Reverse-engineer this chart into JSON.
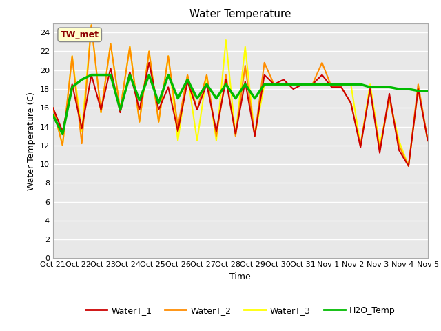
{
  "title": "Water Temperature",
  "xlabel": "Time",
  "ylabel": "Water Temperature (C)",
  "ylim": [
    0,
    25
  ],
  "yticks": [
    0,
    2,
    4,
    6,
    8,
    10,
    12,
    14,
    16,
    18,
    20,
    22,
    24
  ],
  "x_labels": [
    "Oct 21",
    "Oct 22",
    "Oct 23",
    "Oct 24",
    "Oct 25",
    "Oct 26",
    "Oct 27",
    "Oct 28",
    "Oct 29",
    "Oct 30",
    "Oct 31",
    "Nov 1",
    "Nov 2",
    "Nov 3",
    "Nov 4",
    "Nov 5"
  ],
  "annotation_text": "TW_met",
  "annotation_color": "#8B0000",
  "annotation_bg": "#FFFFCC",
  "fig_bg_color": "#FFFFFF",
  "plot_bg_color": "#E8E8E8",
  "grid_color": "#FFFFFF",
  "line_colors": {
    "WaterT_1": "#CC0000",
    "WaterT_2": "#FF8C00",
    "WaterT_3": "#FFFF00",
    "H2O_Temp": "#00BB00"
  },
  "line_widths": {
    "WaterT_1": 1.5,
    "WaterT_2": 1.5,
    "WaterT_3": 1.5,
    "H2O_Temp": 2.5
  },
  "WaterT_1": [
    16.0,
    13.5,
    18.5,
    13.8,
    19.5,
    15.8,
    20.2,
    15.5,
    19.8,
    15.8,
    20.8,
    15.8,
    18.2,
    13.5,
    18.8,
    15.8,
    18.5,
    13.5,
    19.0,
    13.2,
    18.8,
    13.0,
    19.5,
    18.5,
    19.0,
    18.0,
    18.5,
    18.5,
    19.5,
    18.2,
    18.2,
    16.5,
    11.8,
    18.0,
    11.2,
    17.5,
    11.5,
    9.8,
    18.0,
    12.5
  ],
  "WaterT_2": [
    16.0,
    12.0,
    21.5,
    12.2,
    24.8,
    15.5,
    22.8,
    15.8,
    22.5,
    14.5,
    22.0,
    14.5,
    21.5,
    14.0,
    19.5,
    15.8,
    19.5,
    13.0,
    19.5,
    13.0,
    20.5,
    13.0,
    20.8,
    18.5,
    18.5,
    18.5,
    18.5,
    18.5,
    20.8,
    18.2,
    18.2,
    16.5,
    12.0,
    18.0,
    11.5,
    17.0,
    12.0,
    9.8,
    18.5,
    12.5
  ],
  "WaterT_3": [
    16.0,
    12.0,
    21.5,
    13.5,
    24.8,
    15.5,
    22.8,
    15.8,
    22.5,
    14.5,
    22.0,
    14.5,
    21.5,
    12.5,
    19.5,
    12.5,
    19.5,
    12.5,
    23.2,
    13.0,
    22.5,
    13.0,
    18.5,
    18.5,
    18.5,
    18.5,
    18.5,
    18.5,
    18.5,
    18.5,
    18.5,
    18.5,
    12.0,
    18.5,
    12.0,
    17.0,
    12.5,
    9.8,
    18.0,
    12.5
  ],
  "H2O_Temp": [
    15.2,
    13.2,
    18.2,
    19.0,
    19.5,
    19.5,
    19.5,
    15.8,
    19.5,
    16.8,
    19.5,
    16.5,
    19.5,
    17.0,
    19.0,
    17.0,
    18.5,
    17.0,
    18.5,
    17.0,
    18.5,
    17.0,
    18.5,
    18.5,
    18.5,
    18.5,
    18.5,
    18.5,
    18.5,
    18.5,
    18.5,
    18.5,
    18.5,
    18.2,
    18.2,
    18.2,
    18.0,
    18.0,
    17.8,
    17.8
  ]
}
